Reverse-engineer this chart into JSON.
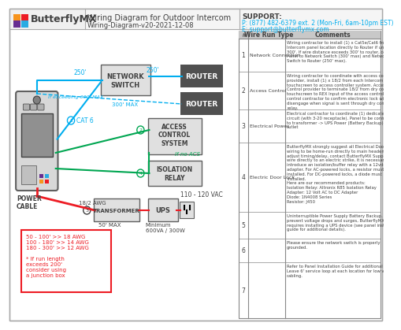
{
  "title": "Wiring Diagram for Outdoor Intercom",
  "subtitle": "Wiring-Diagram-v20-2021-12-08",
  "support_line1": "SUPPORT:",
  "support_line2": "P: (877) 482-6379 ext. 2 (Mon-Fri, 6am-10pm EST)",
  "support_line3": "E: support@butterflymx.com",
  "bg_color": "#ffffff",
  "header_bg": "#f0f0f0",
  "diagram_area_color": "#ffffff",
  "cyan": "#00aeef",
  "green": "#00a651",
  "red": "#ed1c24",
  "dark_gray": "#404040",
  "mid_gray": "#808080",
  "light_gray": "#d0d0d0",
  "box_fill": "#e8e8e8",
  "dark_box": "#505050",
  "table_header_fill": "#d0d0d0",
  "wire_types": [
    "Network Connection",
    "Access Control",
    "Electrical Power",
    "Electric Door Lock",
    "",
    "",
    ""
  ],
  "row_nums": [
    "1",
    "2",
    "3",
    "4",
    "5",
    "6",
    "7"
  ],
  "comments": [
    "Wiring contractor to install (1) x Cat5e/Cat6 from each Intercom panel location directly to Router if under 300'. If wire distance exceeds 300' to router, connect Panel to Network Switch (300' max) and Network Switch to Router (250' max).",
    "Wiring contractor to coordinate with access control provider, install (1) x 18/2 from each Intercom touchscreen to access controller system. Access Control provider to terminate 18/2 from dry contact of touchscreen to REX Input of the access control. Access control contractor to confirm electronic lock will disengage when signal is sent through dry contact relay.",
    "Electrical contractor to coordinate (1) dedicated circuit (with 3-20 receptacle). Panel to be connected to transformer -> UPS Power (Battery Backup) -> Wall outlet",
    "ButterflyMX strongly suggest all Electrical Door Lock wiring to be home-run directly to main headend. To adjust timing/delay, contact ButterflyMX Support. To wire directly to an electric strike, it is necessary to introduce an isolation/buffer relay with a 12vdc adapter. For AC-powered locks, a resistor must be installed. For DC-powered locks, a diode must be installed.\nHere are our recommended products:\nIsolation Relay: Altronix R85 Isolation Relay\nAdapter: 12 Volt AC to DC Adapter\nDiode: 1N4008 Series\nResistor: J450",
    "Uninterruptible Power Supply Battery Backup. To prevent voltage drops and surges, ButterflyMX requires installing a UPS device (see panel installation guide for additional details).",
    "Please ensure the network switch is properly grounded.",
    "Refer to Panel Installation Guide for additional details. Leave 6' service loop at each location for low voltage cabling."
  ]
}
